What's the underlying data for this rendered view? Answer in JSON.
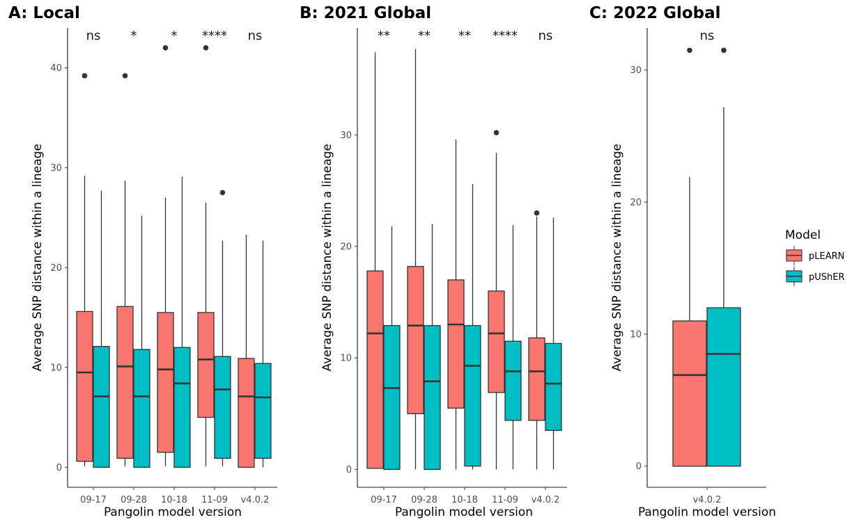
{
  "chart_data": [
    {
      "type": "boxplot",
      "title": "A: Local",
      "xlabel": "Pangolin model version",
      "ylabel": "Average SNP distance within a lineage",
      "ylim": [
        -2,
        44
      ],
      "yticks": [
        0,
        10,
        20,
        30,
        40
      ],
      "categories": [
        "09-17",
        "09-28",
        "10-18",
        "11-09",
        "v4.0.2"
      ],
      "significance": [
        "ns",
        "*",
        "*",
        "****",
        "ns"
      ],
      "series": [
        {
          "name": "pLEARN",
          "color": "#F8766D",
          "boxes": [
            {
              "min": 0.1,
              "q1": 0.6,
              "median": 9.5,
              "q3": 15.6,
              "max": 29.2,
              "outliers": [
                39.2
              ]
            },
            {
              "min": 0.1,
              "q1": 0.9,
              "median": 10.1,
              "q3": 16.1,
              "max": 28.7,
              "outliers": [
                39.2
              ]
            },
            {
              "min": 0.1,
              "q1": 1.5,
              "median": 9.8,
              "q3": 15.5,
              "max": 27.0,
              "outliers": [
                42.0
              ]
            },
            {
              "min": 0.1,
              "q1": 5.0,
              "median": 10.8,
              "q3": 15.5,
              "max": 26.5,
              "outliers": [
                42.0
              ]
            },
            {
              "min": 0.0,
              "q1": 0.0,
              "median": 7.1,
              "q3": 10.9,
              "max": 23.3,
              "outliers": []
            }
          ]
        },
        {
          "name": "pUShER",
          "color": "#00BFC4",
          "boxes": [
            {
              "min": 0.0,
              "q1": 0.0,
              "median": 7.1,
              "q3": 12.1,
              "max": 27.7,
              "outliers": []
            },
            {
              "min": 0.0,
              "q1": 0.0,
              "median": 7.1,
              "q3": 11.8,
              "max": 25.2,
              "outliers": []
            },
            {
              "min": 0.0,
              "q1": 0.0,
              "median": 8.4,
              "q3": 12.0,
              "max": 29.1,
              "outliers": []
            },
            {
              "min": 0.1,
              "q1": 0.9,
              "median": 7.8,
              "q3": 11.1,
              "max": 22.7,
              "outliers": [
                27.5
              ]
            },
            {
              "min": 0.0,
              "q1": 0.9,
              "median": 7.0,
              "q3": 10.4,
              "max": 22.7,
              "outliers": []
            }
          ]
        }
      ]
    },
    {
      "type": "boxplot",
      "title": "B: 2021 Global",
      "xlabel": "Pangolin model version",
      "ylabel": "Average SNP distance within a lineage",
      "ylim": [
        -1.6,
        39.6
      ],
      "yticks": [
        0,
        10,
        20,
        30
      ],
      "categories": [
        "09-17",
        "09-28",
        "10-18",
        "11-09",
        "v4.0.2"
      ],
      "significance": [
        "**",
        "**",
        "**",
        "****",
        "ns"
      ],
      "series": [
        {
          "name": "pLEARN",
          "color": "#F8766D",
          "boxes": [
            {
              "min": 0.1,
              "q1": 0.1,
              "median": 12.2,
              "q3": 17.8,
              "max": 37.4,
              "outliers": []
            },
            {
              "min": 0.0,
              "q1": 5.0,
              "median": 12.9,
              "q3": 18.2,
              "max": 37.7,
              "outliers": []
            },
            {
              "min": 0.0,
              "q1": 5.5,
              "median": 13.0,
              "q3": 17.0,
              "max": 29.6,
              "outliers": []
            },
            {
              "min": 0.0,
              "q1": 6.9,
              "median": 12.2,
              "q3": 16.0,
              "max": 28.4,
              "outliers": [
                30.2
              ]
            },
            {
              "min": 0.0,
              "q1": 4.4,
              "median": 8.8,
              "q3": 11.8,
              "max": 22.7,
              "outliers": [
                23.0
              ]
            }
          ]
        },
        {
          "name": "pUShER",
          "color": "#00BFC4",
          "boxes": [
            {
              "min": 0.0,
              "q1": 0.0,
              "median": 7.3,
              "q3": 12.9,
              "max": 21.8,
              "outliers": []
            },
            {
              "min": 0.0,
              "q1": 0.0,
              "median": 7.9,
              "q3": 12.9,
              "max": 22.0,
              "outliers": []
            },
            {
              "min": 0.0,
              "q1": 0.3,
              "median": 9.3,
              "q3": 12.9,
              "max": 25.6,
              "outliers": []
            },
            {
              "min": 0.0,
              "q1": 4.4,
              "median": 8.8,
              "q3": 11.5,
              "max": 21.9,
              "outliers": []
            },
            {
              "min": 0.0,
              "q1": 3.5,
              "median": 7.7,
              "q3": 11.3,
              "max": 22.6,
              "outliers": []
            }
          ]
        }
      ]
    },
    {
      "type": "boxplot",
      "title": "C: 2022 Global",
      "xlabel": "Pangolin model version",
      "ylabel": "Average SNP distance within a lineage",
      "ylim": [
        -1.6,
        33.2
      ],
      "yticks": [
        0,
        10,
        20,
        30
      ],
      "categories": [
        "v4.0.2"
      ],
      "significance": [
        "ns"
      ],
      "series": [
        {
          "name": "pLEARN",
          "color": "#F8766D",
          "boxes": [
            {
              "min": 0.0,
              "q1": 0.0,
              "median": 6.9,
              "q3": 11.0,
              "max": 21.9,
              "outliers": [
                31.5
              ]
            }
          ]
        },
        {
          "name": "pUShER",
          "color": "#00BFC4",
          "boxes": [
            {
              "min": 0.0,
              "q1": 0.0,
              "median": 8.5,
              "q3": 12.0,
              "max": 27.2,
              "outliers": [
                31.5
              ]
            }
          ]
        }
      ]
    }
  ],
  "legend": {
    "title": "Model",
    "position": "right",
    "items": [
      {
        "label": "pLEARN",
        "color": "#F8766D"
      },
      {
        "label": "pUShER",
        "color": "#00BFC4"
      }
    ]
  }
}
